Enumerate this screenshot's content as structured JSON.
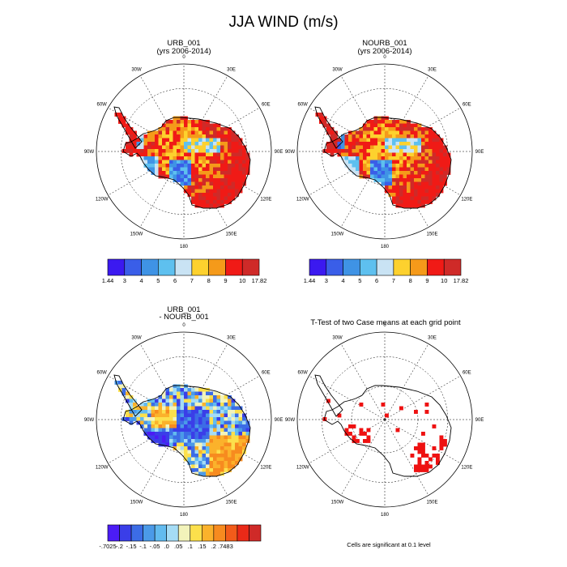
{
  "title": "JJA WIND (m/s)",
  "colors": {
    "wind": [
      "#3b19f0",
      "#3a5ee8",
      "#3f93e5",
      "#5ec0ef",
      "#c9e3f4",
      "#fdd12e",
      "#f59a1a",
      "#f01a16",
      "#cf2a28"
    ],
    "diff": [
      "#4b1cf5",
      "#3a3ee8",
      "#3c6ce6",
      "#4b9ae8",
      "#62bbef",
      "#a5dcf5",
      "#f2f3ba",
      "#fce04c",
      "#fbb22b",
      "#f78b1f",
      "#f25c1a",
      "#ea2a18",
      "#cf2a28"
    ],
    "sig": "#ee1111",
    "outline": "#000000"
  },
  "longitude_labels": [
    "0",
    "30E",
    "60E",
    "90E",
    "120E",
    "150E",
    "180",
    "150W",
    "120W",
    "90W",
    "60W",
    "30W"
  ],
  "panels": [
    {
      "id": "urb",
      "title_lines": [
        "URB_001",
        "(yrs 2006-2014)"
      ],
      "field": "wind"
    },
    {
      "id": "nourb",
      "title_lines": [
        "NOURB_001",
        "(yrs 2006-2014)"
      ],
      "field": "wind"
    },
    {
      "id": "diff",
      "title_lines": [
        "URB_001",
        "- NOURB_001"
      ],
      "field": "diff"
    },
    {
      "id": "ttest",
      "title_lines": [
        "T-Test of two Case means at each grid point"
      ],
      "field": "sig"
    }
  ],
  "colorbars": {
    "wind": {
      "labels": [
        "1.44",
        "3",
        "4",
        "5",
        "6",
        "7",
        "8",
        "9",
        "10",
        "17.82"
      ]
    },
    "diff": {
      "labels": [
        "-.7025",
        "-.2",
        "-.15",
        "-.1",
        "-.05",
        ".0",
        ".05",
        ".1",
        ".15",
        ".2",
        ".7483"
      ]
    }
  },
  "footnote": "Cells are significant at 0.1 level",
  "chart_data": [
    {
      "type": "heatmap",
      "title": "URB_001 (yrs 2006-2014)",
      "projection": "south-polar-stereographic",
      "variable": "JJA WIND",
      "units": "m/s",
      "levels": [
        1.44,
        3,
        4,
        5,
        6,
        7,
        8,
        9,
        10,
        17.82
      ]
    },
    {
      "type": "heatmap",
      "title": "NOURB_001 (yrs 2006-2014)",
      "projection": "south-polar-stereographic",
      "variable": "JJA WIND",
      "units": "m/s",
      "levels": [
        1.44,
        3,
        4,
        5,
        6,
        7,
        8,
        9,
        10,
        17.82
      ]
    },
    {
      "type": "heatmap",
      "title": "URB_001 - NOURB_001",
      "projection": "south-polar-stereographic",
      "levels": [
        -0.7025,
        -0.2,
        -0.15,
        -0.1,
        -0.05,
        0.0,
        0.05,
        0.1,
        0.15,
        0.2,
        0.7483
      ]
    },
    {
      "type": "heatmap",
      "title": "T-Test of two Case means at each grid point",
      "projection": "south-polar-stereographic",
      "significance_level": 0.1
    }
  ]
}
